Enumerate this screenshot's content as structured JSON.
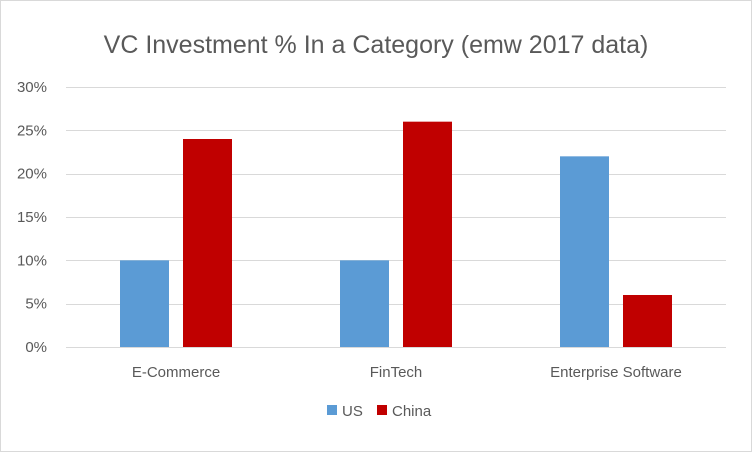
{
  "chart_data": {
    "type": "bar",
    "title": "VC Investment % In a Category (emw 2017 data)",
    "categories": [
      "E-Commerce",
      "FinTech",
      "Enterprise Software"
    ],
    "series": [
      {
        "name": "US",
        "color": "#5b9bd5",
        "values": [
          10,
          10,
          22
        ]
      },
      {
        "name": "China",
        "color": "#c00000",
        "values": [
          24,
          26,
          6
        ]
      }
    ],
    "ylim": [
      0,
      30
    ],
    "yticks": [
      "0%",
      "5%",
      "10%",
      "15%",
      "20%",
      "25%",
      "30%"
    ],
    "ytick_values": [
      0,
      5,
      10,
      15,
      20,
      25,
      30
    ],
    "grid": true,
    "legend": "bottom"
  }
}
